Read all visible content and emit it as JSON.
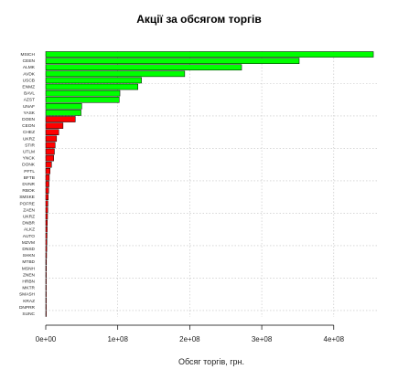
{
  "chart_data": {
    "type": "bar",
    "orientation": "horizontal",
    "title": "Акції за обсягом торгів",
    "xlabel": "Обсяг торгів, грн.",
    "ylabel": "",
    "xlim": [
      0,
      460000000
    ],
    "x_ticks": [
      0,
      100000000,
      200000000,
      300000000,
      400000000
    ],
    "x_tick_labels": [
      "0e+00",
      "1e+08",
      "2e+08",
      "3e+08",
      "4e+08"
    ],
    "grid": true,
    "colors": {
      "up": "#00ff00",
      "down": "#ff0000",
      "outline": "#000000",
      "grid": "#c0c0c0"
    },
    "categories": [
      "MSICH",
      "CEEN",
      "ALMK",
      "AVDK",
      "USCB",
      "ENMZ",
      "BAVL",
      "AZST",
      "UNAF",
      "YASK",
      "DOEN",
      "CEON",
      "CHEZ",
      "UKRZ",
      "STIR",
      "UTLM",
      "YNCK",
      "DONK",
      "PFTL",
      "BFTB",
      "DVNR",
      "RBOK",
      "SMSKE",
      "POFRE",
      "ZAEN",
      "UKRZ",
      "DNBR",
      "ALKZ",
      "AUTO",
      "MZVM",
      "DNSD",
      "SHKN",
      "MTBD",
      "MSNH",
      "ZNEN",
      "HRBN",
      "MKTR",
      "SMASH",
      "KRAZ",
      "DNPRR",
      "SUNC"
    ],
    "values": [
      455000000,
      352000000,
      272000000,
      193000000,
      133000000,
      128000000,
      103000000,
      102000000,
      50000000,
      49000000,
      41000000,
      24000000,
      18000000,
      15000000,
      13000000,
      12000000,
      11000000,
      8000000,
      6000000,
      5000000,
      4500000,
      4000000,
      3500000,
      3000000,
      2800000,
      2500000,
      2200000,
      2000000,
      1800000,
      1600000,
      1400000,
      1200000,
      1000000,
      900000,
      800000,
      700000,
      600000,
      500000,
      400000,
      300000,
      200000
    ],
    "bar_colors": [
      "up",
      "up",
      "up",
      "up",
      "up",
      "up",
      "up",
      "up",
      "up",
      "up",
      "down",
      "down",
      "down",
      "down",
      "down",
      "down",
      "down",
      "down",
      "down",
      "down",
      "down",
      "down",
      "down",
      "down",
      "down",
      "down",
      "down",
      "down",
      "down",
      "down",
      "down",
      "down",
      "down",
      "down",
      "down",
      "down",
      "down",
      "down",
      "down",
      "down",
      "down"
    ]
  }
}
